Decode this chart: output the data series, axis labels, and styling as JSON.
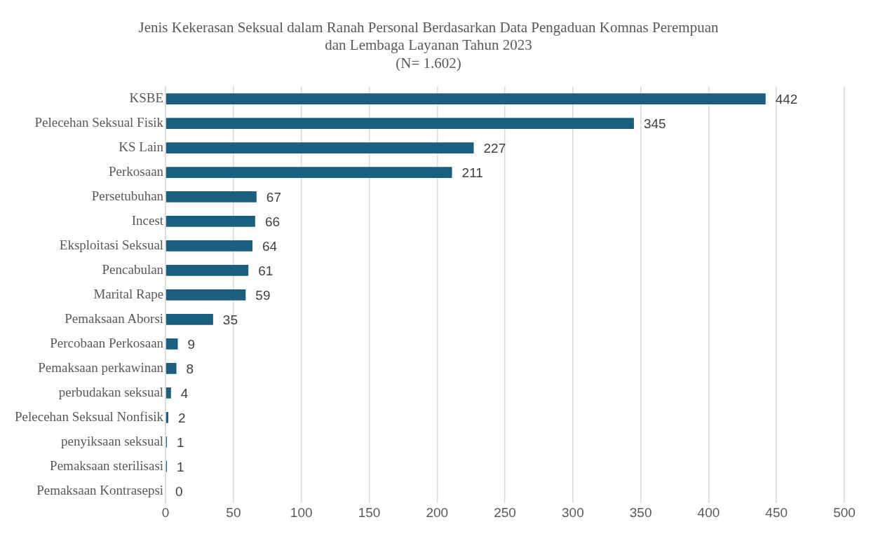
{
  "chart_data": {
    "type": "bar",
    "orientation": "horizontal",
    "title": "Jenis Kekerasan Seksual dalam Ranah Personal Berdasarkan Data Pengaduan Komnas Perempuan dan Lembaga Layanan Tahun 2023\n(N= 1.602)",
    "categories": [
      "KSBE",
      "Pelecehan Seksual Fisik",
      "KS Lain",
      "Perkosaan",
      "Persetubuhan",
      "Incest",
      "Eksploitasi Seksual",
      "Pencabulan",
      "Marital Rape",
      "Pemaksaan Aborsi",
      "Percobaan Perkosaan",
      "Pemaksaan perkawinan",
      "perbudakan seksual",
      "Pelecehan Seksual Nonfisik",
      "penyiksaan seksual",
      "Pemaksaan sterilisasi",
      "Pemaksaan Kontrasepsi"
    ],
    "values": [
      442,
      345,
      227,
      211,
      67,
      66,
      64,
      61,
      59,
      35,
      9,
      8,
      4,
      2,
      1,
      1,
      0
    ],
    "color": "#1b5f80",
    "xlim": [
      0,
      500
    ],
    "xticks": [
      0,
      50,
      100,
      150,
      200,
      250,
      300,
      350,
      400,
      450,
      500
    ],
    "grid": "x",
    "data_labels": true,
    "legend": false
  }
}
